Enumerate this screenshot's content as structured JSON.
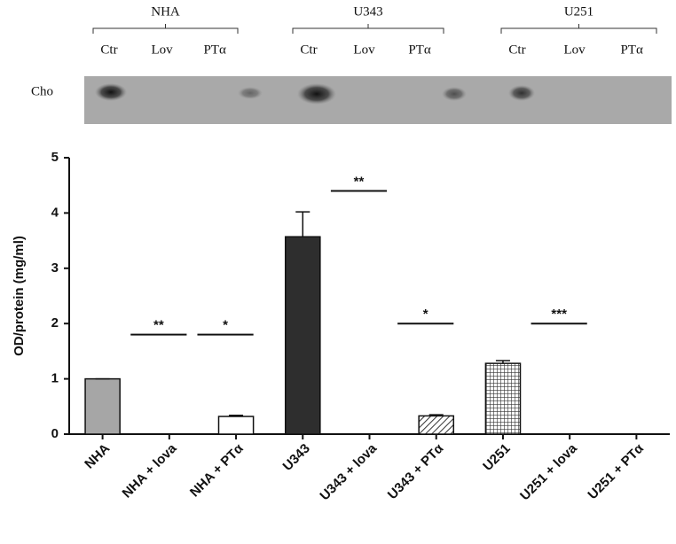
{
  "blot": {
    "groups": [
      "NHA",
      "U343",
      "U251"
    ],
    "lanes": [
      "Ctr",
      "Lov",
      "PTα"
    ],
    "row_label": "Cho"
  },
  "chart_data": {
    "type": "bar",
    "y_label": "OD/protein (mg/ml)",
    "categories": [
      "NHA",
      "NHA + lova",
      "NHA + PTα",
      "U343",
      "U343 + lova",
      "U343 + PTα",
      "U251",
      "U251 + lova",
      "U251 + PTα"
    ],
    "values": [
      1.0,
      0,
      0.32,
      3.57,
      0,
      0.33,
      1.28,
      0,
      0
    ],
    "errors": [
      0,
      0,
      0.02,
      0.45,
      0,
      0.02,
      0.05,
      0,
      0
    ],
    "colors": [
      "#a6a6a6",
      "#ffffff",
      "#ffffff",
      "#2e2e2e",
      "#ffffff",
      "url(#hatch)",
      "url(#grid)",
      "#ffffff",
      "#ffffff"
    ],
    "ylim": [
      0,
      5
    ],
    "yticks": [
      0,
      1,
      2,
      3,
      4,
      5
    ],
    "annotations": [
      {
        "text": "**",
        "y": 1.8,
        "category": 1
      },
      {
        "text": "*",
        "y": 1.8,
        "category": 2
      },
      {
        "text": "**",
        "y": 4.4,
        "category": 4
      },
      {
        "text": "*",
        "y": 2.0,
        "category": 5
      },
      {
        "text": "***",
        "y": 2.0,
        "category": 7
      }
    ]
  }
}
